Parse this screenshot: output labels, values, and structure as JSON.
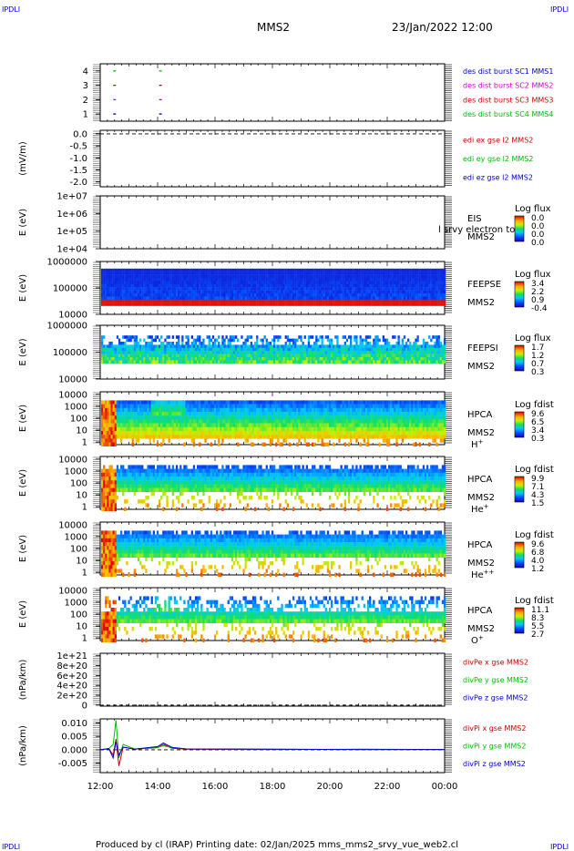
{
  "header": {
    "corner_left": "IPDLI",
    "corner_right": "IPDLI",
    "title": "MMS2",
    "datetime": "23/Jan/2022 12:00"
  },
  "footer": {
    "text": "Produced by cl (IRAP)   Printing date: 02/Jan/2025   mms_mms2_srvy_vue_web2.cl",
    "corner_left": "IPDLI",
    "corner_right": "IPDLI"
  },
  "chart_data": [
    {
      "type": "scatter",
      "panel": "burst",
      "yticks": [
        "1",
        "2",
        "3",
        "4"
      ],
      "ylim": [
        0.5,
        4.5
      ],
      "legend": [
        {
          "text": "des dist burst SC1 MMS1",
          "color": "#0000cc"
        },
        {
          "text": "des dist burst SC2 MMS2",
          "color": "#cc00cc"
        },
        {
          "text": "des dist burst SC3 MMS3",
          "color": "#cc0000"
        },
        {
          "text": "des dist burst SC4 MMS4",
          "color": "#00bb00"
        }
      ],
      "marks": [
        {
          "sc": 1,
          "times": [
            12.5,
            14.1
          ],
          "color": "#0000cc"
        },
        {
          "sc": 2,
          "times": [
            12.5,
            14.1
          ],
          "color": "#cc00cc"
        },
        {
          "sc": 3,
          "times": [
            12.5,
            14.1
          ],
          "color": "#cc0000"
        },
        {
          "sc": 4,
          "times": [
            12.5,
            14.1
          ],
          "color": "#00bb00"
        }
      ]
    },
    {
      "type": "line",
      "panel": "edi",
      "ylabel": "(mV/m)",
      "yticks": [
        "0.0",
        "-0.5",
        "-1.0",
        "-1.5",
        "-2.0"
      ],
      "ytick_values": [
        0.0,
        -0.5,
        -1.0,
        -1.5,
        -2.0
      ],
      "ylim": [
        -2.2,
        0.15
      ],
      "zero_line": true,
      "legend": [
        {
          "text": "edi ex gse l2 MMS2",
          "color": "#cc0000"
        },
        {
          "text": "edi ey gse l2 MMS2",
          "color": "#00bb00"
        },
        {
          "text": "edi ez gse l2 MMS2",
          "color": "#0000cc"
        }
      ]
    },
    {
      "type": "heatmap",
      "panel": "eis",
      "ylabel": "E (eV)",
      "yticks": [
        "1e+07",
        "1e+06",
        "1e+05",
        "1e+04"
      ],
      "ylog": [
        4,
        7
      ],
      "label_lines": [
        "EIS",
        "MMS2"
      ],
      "overlay_text": "l srvy electron to",
      "colorbar_title": "Log flux",
      "colorbar_ticks": [
        "0.0",
        "0.0",
        "0.0",
        "0.0"
      ],
      "empty": true
    },
    {
      "type": "heatmap",
      "panel": "feepse",
      "ylabel": "E (eV)",
      "yticks": [
        "1000000",
        "100000",
        "10000"
      ],
      "ylog": [
        4,
        6
      ],
      "label_lines": [
        "FEEPSE",
        "MMS2"
      ],
      "colorbar_title": "Log flux",
      "colorbar_ticks": [
        "3.4",
        "2.2",
        "0.9",
        "-0.4"
      ]
    },
    {
      "type": "heatmap",
      "panel": "feepsi",
      "ylabel": "E (eV)",
      "yticks": [
        "1000000",
        "100000",
        "10000"
      ],
      "ylog": [
        4,
        6
      ],
      "label_lines": [
        "FEEPSI",
        "MMS2"
      ],
      "colorbar_title": "Log flux",
      "colorbar_ticks": [
        "1.7",
        "1.2",
        "0.7",
        "0.3"
      ]
    },
    {
      "type": "heatmap",
      "panel": "hpca_h",
      "ylabel": "E (eV)",
      "yticks": [
        "10000",
        "1000",
        "100",
        "10",
        "1"
      ],
      "ylog": [
        0,
        4.6
      ],
      "label_lines": [
        "HPCA",
        "MMS2"
      ],
      "species": "H",
      "species_sup": "+",
      "colorbar_title": "Log fdist",
      "colorbar_ticks": [
        "9.6",
        "6.5",
        "3.4",
        "0.3"
      ]
    },
    {
      "type": "heatmap",
      "panel": "hpca_he",
      "ylabel": "E (eV)",
      "yticks": [
        "10000",
        "1000",
        "100",
        "10",
        "1"
      ],
      "ylog": [
        0,
        4.6
      ],
      "label_lines": [
        "HPCA",
        "MMS2"
      ],
      "species": "He",
      "species_sup": "+",
      "colorbar_title": "Log fdist",
      "colorbar_ticks": [
        "9.9",
        "7.1",
        "4.3",
        "1.5"
      ]
    },
    {
      "type": "heatmap",
      "panel": "hpca_hepp",
      "ylabel": "E (eV)",
      "yticks": [
        "10000",
        "1000",
        "100",
        "10",
        "1"
      ],
      "ylog": [
        0,
        4.6
      ],
      "label_lines": [
        "HPCA",
        "MMS2"
      ],
      "species": "He",
      "species_sup": "++",
      "colorbar_title": "Log fdist",
      "colorbar_ticks": [
        "9.6",
        "6.8",
        "4.0",
        "1.2"
      ]
    },
    {
      "type": "heatmap",
      "panel": "hpca_o",
      "ylabel": "E (eV)",
      "yticks": [
        "10000",
        "1000",
        "100",
        "10",
        "1"
      ],
      "ylog": [
        0,
        4.6
      ],
      "label_lines": [
        "HPCA",
        "MMS2"
      ],
      "species": "O",
      "species_sup": "+",
      "colorbar_title": "Log fdist",
      "colorbar_ticks": [
        "11.1",
        "8.3",
        "5.5",
        "2.7"
      ]
    },
    {
      "type": "line",
      "panel": "divpe",
      "ylabel": "(nPa/km)",
      "yticks": [
        "1e+21",
        "8e+20",
        "6e+20",
        "4e+20",
        "2e+20",
        "0"
      ],
      "ytick_values": [
        1e+21,
        8e+20,
        6e+20,
        4e+20,
        2e+20,
        0
      ],
      "ylim": [
        -2e+19,
        1.05e+21
      ],
      "zero_line": true,
      "legend": [
        {
          "text": "divPe x gse MMS2",
          "color": "#cc0000"
        },
        {
          "text": "divPe y gse MMS2",
          "color": "#00bb00"
        },
        {
          "text": "divPe z gse MMS2",
          "color": "#0000cc"
        }
      ]
    },
    {
      "type": "line",
      "panel": "divpi",
      "ylabel": "(nPa/km)",
      "yticks": [
        "0.010",
        "0.005",
        "0.000",
        "-0.005"
      ],
      "ytick_values": [
        0.01,
        0.005,
        0.0,
        -0.005
      ],
      "ylim": [
        -0.0085,
        0.0115
      ],
      "zero_line": true,
      "legend": [
        {
          "text": "divPi x gse MMS2",
          "color": "#cc0000"
        },
        {
          "text": "divPi y gse MMS2",
          "color": "#00bb00"
        },
        {
          "text": "divPi z gse MMS2",
          "color": "#0000cc"
        }
      ],
      "series": [
        {
          "name": "divPi x gse MMS2",
          "color": "#cc0000",
          "x": [
            12.0,
            12.3,
            12.45,
            12.55,
            12.65,
            12.8,
            13.2,
            14.0,
            14.2,
            14.5,
            15.0,
            18.0,
            21.0,
            24.0
          ],
          "y": [
            0.0,
            0.0005,
            -0.002,
            0.004,
            -0.006,
            0.001,
            0.0002,
            0.0008,
            0.002,
            0.0006,
            0.0002,
            0.0001,
            0.0002,
            0.0001
          ]
        },
        {
          "name": "divPi y gse MMS2",
          "color": "#00bb00",
          "x": [
            12.0,
            12.3,
            12.45,
            12.55,
            12.65,
            12.8,
            13.2,
            14.0,
            14.2,
            14.5,
            15.0,
            18.0,
            21.0,
            24.0
          ],
          "y": [
            0.0,
            0.0005,
            0.002,
            0.011,
            -0.003,
            0.002,
            0.0003,
            0.0009,
            0.0015,
            0.0008,
            0.0003,
            0.0002,
            0.0001,
            0.0001
          ]
        },
        {
          "name": "divPi z gse MMS2",
          "color": "#0000cc",
          "x": [
            12.0,
            12.3,
            12.45,
            12.55,
            12.65,
            12.8,
            13.2,
            14.0,
            14.2,
            14.5,
            15.0,
            18.0,
            21.0,
            24.0
          ],
          "y": [
            0.0,
            0.0004,
            -0.003,
            0.003,
            -0.002,
            0.001,
            0.0002,
            0.0012,
            0.0025,
            0.0009,
            0.0003,
            0.0002,
            0.0001,
            0.0001
          ]
        }
      ]
    }
  ],
  "xaxis": {
    "ticks": [
      "12:00",
      "14:00",
      "16:00",
      "18:00",
      "20:00",
      "22:00",
      "00:00"
    ],
    "tick_hours": [
      12,
      14,
      16,
      18,
      20,
      22,
      24
    ],
    "range_hours": [
      12,
      24
    ]
  }
}
